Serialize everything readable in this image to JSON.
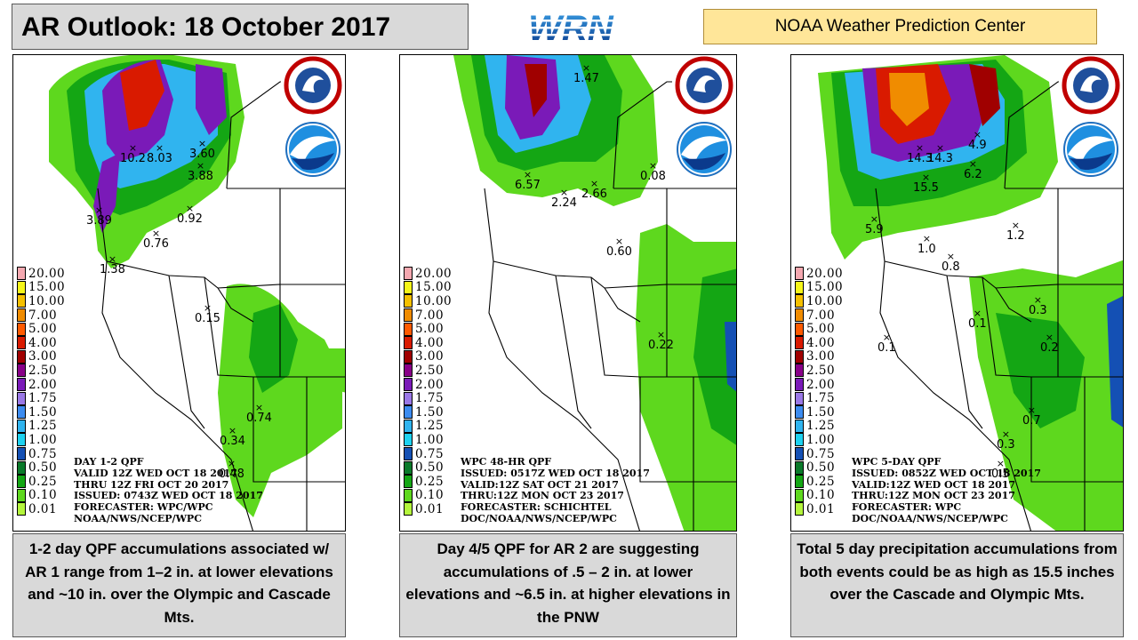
{
  "title": "AR Outlook: 18 October 2017",
  "logo_text": "WRN",
  "center_label": "NOAA Weather Prediction Center",
  "legend": {
    "labels": [
      "20.00",
      "15.00",
      "10.00",
      "7.00",
      "5.00",
      "4.00",
      "3.00",
      "2.50",
      "2.00",
      "1.75",
      "1.50",
      "1.25",
      "1.00",
      "0.75",
      "0.50",
      "0.25",
      "0.10",
      "0.01"
    ],
    "colors": [
      "#f4a8b0",
      "#f5f519",
      "#f5c000",
      "#f08c00",
      "#ff5a00",
      "#d91a00",
      "#a00000",
      "#880088",
      "#7a1ab8",
      "#9a78e6",
      "#3c8cf0",
      "#30b4ef",
      "#1ed2f0",
      "#1450b4",
      "#0a7a2a",
      "#14a614",
      "#5ed81e",
      "#b4f53c"
    ]
  },
  "panels": [
    {
      "info": [
        "DAY 1-2 QPF",
        "VALID 12Z WED OCT 18 2017",
        "THRU 12Z FRI OCT 20 2017",
        "ISSUED: 0743Z WED OCT 18 2017",
        "FORECASTER: WPC/WPC",
        "NOAA/NWS/NCEP/WPC"
      ],
      "markers": [
        "10.2",
        "8.03",
        "3.60",
        "3.88",
        "3.89",
        "0.92",
        "0.76",
        "1.38",
        "0.15",
        "0.74",
        "0.34",
        "0.48"
      ],
      "caption": "1-2 day QPF accumulations associated w/ AR 1 range from 1–2 in. at lower elevations and ~10 in. over the Olympic and Cascade Mts."
    },
    {
      "info": [
        "WPC 48-HR QPF",
        "ISSUED: 0517Z WED OCT 18 2017",
        "VALID:12Z SAT OCT 21 2017",
        "THRU:12Z MON OCT 23 2017",
        "FORECASTER: SCHICHTEL",
        "DOC/NOAA/NWS/NCEP/WPC"
      ],
      "markers": [
        "1.47",
        "6.57",
        "2.24",
        "2.66",
        "0.08",
        "0.60",
        "0.22"
      ],
      "caption": "Day 4/5 QPF for AR 2 are suggesting accumulations of .5 – 2 in. at lower elevations and ~6.5 in. at higher elevations in the PNW"
    },
    {
      "info": [
        "WPC 5-DAY QPF",
        "ISSUED: 0852Z WED OCT 18 2017",
        "VALID:12Z WED OCT 18 2017",
        "THRU:12Z MON OCT 23 2017",
        "FORECASTER: WPC",
        "DOC/NOAA/NWS/NCEP/WPC"
      ],
      "markers": [
        "4.9",
        "14.3",
        "14.3",
        "6.2",
        "15.5",
        "5.9",
        "1.0",
        "0.8",
        "1.2",
        "0.1",
        "0.3",
        "0.1",
        "0.2",
        "0.7",
        "0.3",
        "0.5"
      ],
      "caption": "Total 5 day precipitation accumulations from both events could be as high as 15.5 inches over the Cascade and Olympic Mts."
    }
  ]
}
